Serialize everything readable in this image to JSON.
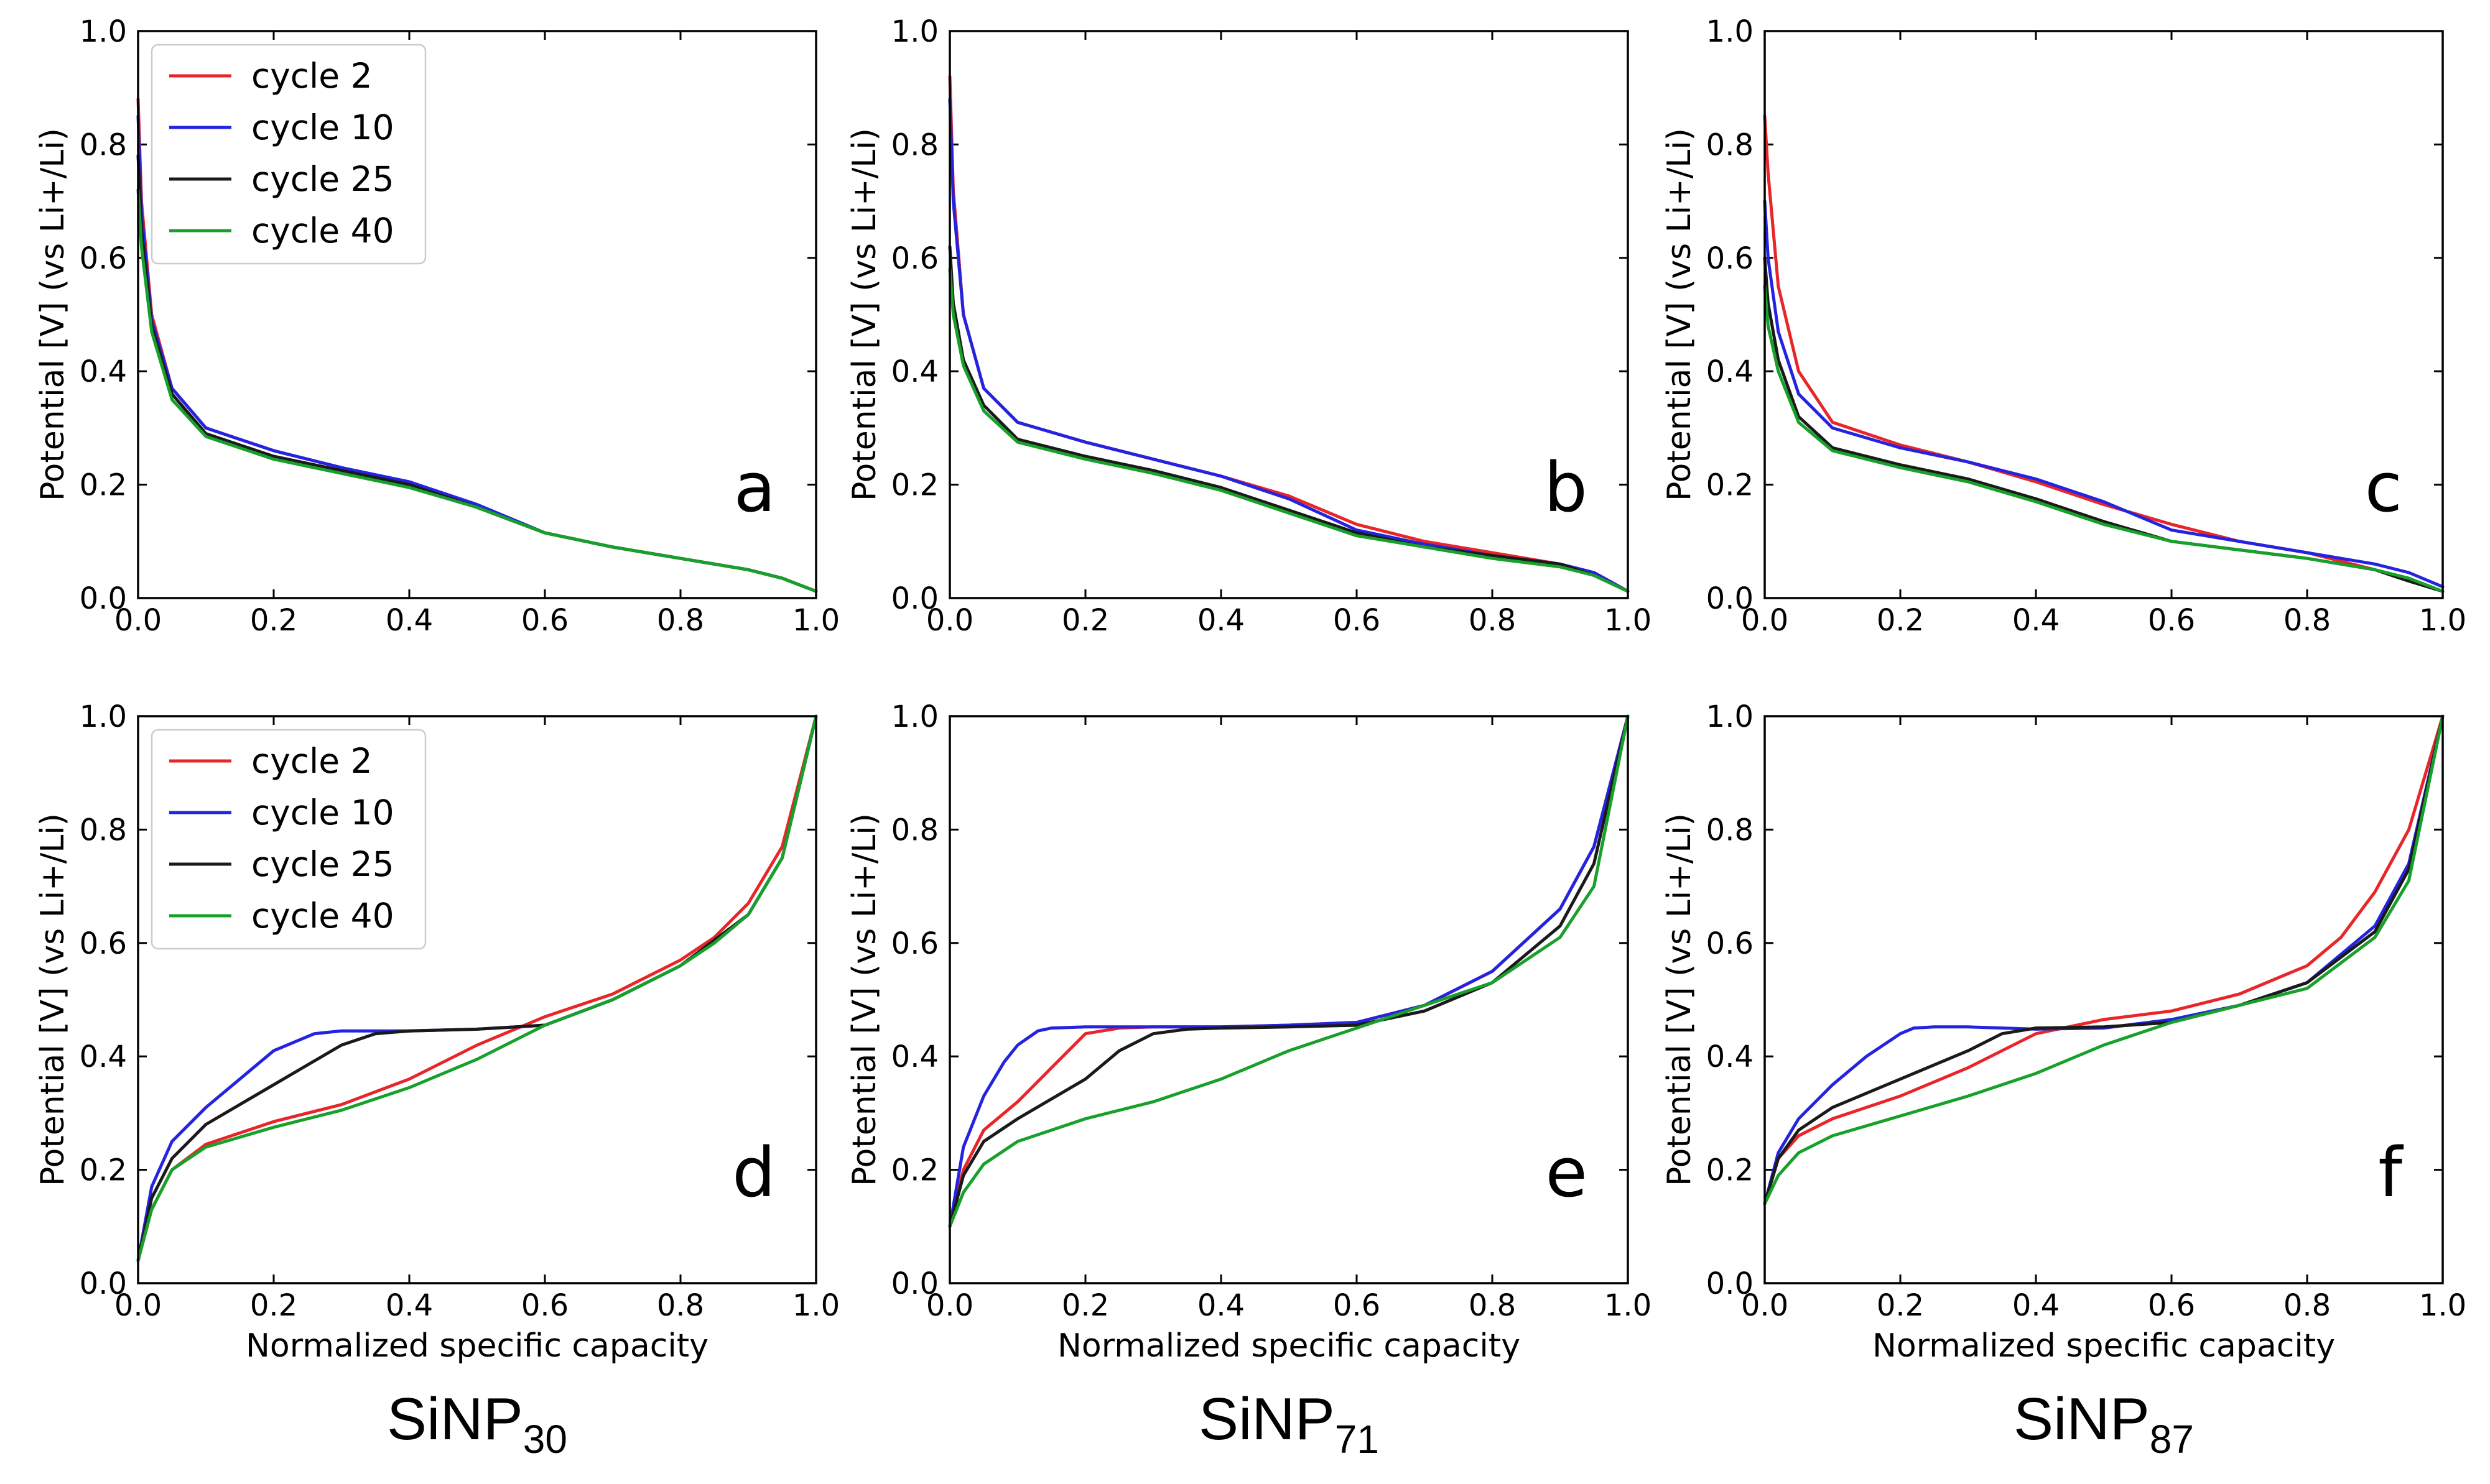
{
  "figure": {
    "xlabel": "Normalized specific capacity",
    "ylabel": "Potential [V] (vs Li+/Li)",
    "tick_labels": [
      "0.0",
      "0.2",
      "0.4",
      "0.6",
      "0.8",
      "1.0"
    ],
    "columns": [
      {
        "base": "SiNP",
        "sub": "30"
      },
      {
        "base": "SiNP",
        "sub": "71"
      },
      {
        "base": "SiNP",
        "sub": "87"
      }
    ],
    "colors": {
      "cycle 2": "#e8262a",
      "cycle 10": "#2424e0",
      "cycle 25": "#1a1a1a",
      "cycle 40": "#17a02a"
    }
  },
  "chart_data": [
    {
      "panel": "a",
      "type": "line",
      "row": "top",
      "column": "SiNP30",
      "legend": true,
      "xlabel": "",
      "ylabel": "Potential [V] (vs Li+/Li)",
      "xlim": [
        0,
        1
      ],
      "ylim": [
        0,
        1
      ],
      "series": [
        {
          "name": "cycle 2",
          "x": [
            0,
            0.005,
            0.02,
            0.05,
            0.1,
            0.2,
            0.3,
            0.4,
            0.5,
            0.6,
            0.7,
            0.8,
            0.9,
            0.95,
            1.0
          ],
          "y": [
            0.88,
            0.7,
            0.5,
            0.37,
            0.3,
            0.26,
            0.23,
            0.2,
            0.16,
            0.115,
            0.09,
            0.07,
            0.05,
            0.035,
            0.012
          ]
        },
        {
          "name": "cycle 10",
          "x": [
            0,
            0.005,
            0.02,
            0.05,
            0.1,
            0.2,
            0.3,
            0.4,
            0.5,
            0.6,
            0.7,
            0.8,
            0.9,
            0.95,
            1.0
          ],
          "y": [
            0.85,
            0.68,
            0.49,
            0.37,
            0.3,
            0.26,
            0.23,
            0.205,
            0.165,
            0.115,
            0.09,
            0.07,
            0.05,
            0.035,
            0.012
          ]
        },
        {
          "name": "cycle 25",
          "x": [
            0,
            0.005,
            0.02,
            0.05,
            0.1,
            0.2,
            0.3,
            0.4,
            0.5,
            0.6,
            0.7,
            0.8,
            0.9,
            0.95,
            1.0
          ],
          "y": [
            0.78,
            0.65,
            0.48,
            0.36,
            0.29,
            0.25,
            0.225,
            0.2,
            0.16,
            0.115,
            0.09,
            0.07,
            0.05,
            0.035,
            0.012
          ]
        },
        {
          "name": "cycle 40",
          "x": [
            0,
            0.005,
            0.02,
            0.05,
            0.1,
            0.2,
            0.3,
            0.4,
            0.5,
            0.6,
            0.7,
            0.8,
            0.9,
            0.95,
            1.0
          ],
          "y": [
            0.72,
            0.62,
            0.47,
            0.35,
            0.285,
            0.245,
            0.22,
            0.195,
            0.16,
            0.115,
            0.09,
            0.07,
            0.05,
            0.035,
            0.012
          ]
        }
      ]
    },
    {
      "panel": "b",
      "type": "line",
      "row": "top",
      "column": "SiNP71",
      "legend": false,
      "xlabel": "",
      "ylabel": "Potential [V] (vs Li+/Li)",
      "xlim": [
        0,
        1
      ],
      "ylim": [
        0,
        1
      ],
      "series": [
        {
          "name": "cycle 2",
          "x": [
            0,
            0.005,
            0.02,
            0.05,
            0.1,
            0.2,
            0.3,
            0.4,
            0.5,
            0.6,
            0.7,
            0.8,
            0.9,
            0.95,
            1.0
          ],
          "y": [
            0.92,
            0.72,
            0.5,
            0.37,
            0.31,
            0.275,
            0.245,
            0.215,
            0.18,
            0.13,
            0.1,
            0.08,
            0.06,
            0.045,
            0.012
          ]
        },
        {
          "name": "cycle 10",
          "x": [
            0,
            0.005,
            0.02,
            0.05,
            0.1,
            0.2,
            0.3,
            0.4,
            0.5,
            0.6,
            0.7,
            0.8,
            0.9,
            0.95,
            1.0
          ],
          "y": [
            0.88,
            0.7,
            0.5,
            0.37,
            0.31,
            0.275,
            0.245,
            0.215,
            0.175,
            0.12,
            0.095,
            0.075,
            0.06,
            0.045,
            0.012
          ]
        },
        {
          "name": "cycle 25",
          "x": [
            0,
            0.005,
            0.02,
            0.05,
            0.1,
            0.2,
            0.3,
            0.4,
            0.5,
            0.6,
            0.7,
            0.8,
            0.9,
            0.95,
            1.0
          ],
          "y": [
            0.62,
            0.52,
            0.42,
            0.34,
            0.28,
            0.25,
            0.225,
            0.195,
            0.155,
            0.115,
            0.09,
            0.075,
            0.06,
            0.04,
            0.012
          ]
        },
        {
          "name": "cycle 40",
          "x": [
            0,
            0.005,
            0.02,
            0.05,
            0.1,
            0.2,
            0.3,
            0.4,
            0.5,
            0.6,
            0.7,
            0.8,
            0.9,
            0.95,
            1.0
          ],
          "y": [
            0.58,
            0.5,
            0.41,
            0.33,
            0.275,
            0.245,
            0.22,
            0.19,
            0.15,
            0.11,
            0.09,
            0.07,
            0.055,
            0.04,
            0.012
          ]
        }
      ]
    },
    {
      "panel": "c",
      "type": "line",
      "row": "top",
      "column": "SiNP87",
      "legend": false,
      "xlabel": "",
      "ylabel": "Potential [V] (vs Li+/Li)",
      "xlim": [
        0,
        1
      ],
      "ylim": [
        0,
        1
      ],
      "series": [
        {
          "name": "cycle 2",
          "x": [
            0,
            0.005,
            0.02,
            0.05,
            0.1,
            0.2,
            0.3,
            0.4,
            0.5,
            0.6,
            0.7,
            0.8,
            0.9,
            0.95,
            1.0
          ],
          "y": [
            0.85,
            0.75,
            0.55,
            0.4,
            0.31,
            0.27,
            0.24,
            0.205,
            0.165,
            0.13,
            0.1,
            0.08,
            0.05,
            0.03,
            0.012
          ]
        },
        {
          "name": "cycle 10",
          "x": [
            0,
            0.005,
            0.02,
            0.05,
            0.1,
            0.2,
            0.3,
            0.4,
            0.5,
            0.6,
            0.7,
            0.8,
            0.9,
            0.95,
            1.0
          ],
          "y": [
            0.7,
            0.6,
            0.47,
            0.36,
            0.3,
            0.265,
            0.24,
            0.21,
            0.17,
            0.12,
            0.1,
            0.08,
            0.06,
            0.045,
            0.02
          ]
        },
        {
          "name": "cycle 25",
          "x": [
            0,
            0.005,
            0.02,
            0.05,
            0.1,
            0.2,
            0.3,
            0.4,
            0.5,
            0.6,
            0.7,
            0.8,
            0.9,
            0.95,
            1.0
          ],
          "y": [
            0.6,
            0.52,
            0.42,
            0.32,
            0.265,
            0.235,
            0.21,
            0.175,
            0.135,
            0.1,
            0.085,
            0.07,
            0.05,
            0.03,
            0.012
          ]
        },
        {
          "name": "cycle 40",
          "x": [
            0,
            0.005,
            0.02,
            0.05,
            0.1,
            0.2,
            0.3,
            0.4,
            0.5,
            0.6,
            0.7,
            0.8,
            0.9,
            0.95,
            1.0
          ],
          "y": [
            0.55,
            0.48,
            0.4,
            0.31,
            0.26,
            0.23,
            0.205,
            0.17,
            0.13,
            0.1,
            0.085,
            0.07,
            0.05,
            0.035,
            0.012
          ]
        }
      ]
    },
    {
      "panel": "d",
      "type": "line",
      "row": "bottom",
      "column": "SiNP30",
      "legend": true,
      "xlabel": "Normalized specific capacity",
      "ylabel": "Potential [V] (vs Li+/Li)",
      "xlim": [
        0,
        1
      ],
      "ylim": [
        0,
        1
      ],
      "series": [
        {
          "name": "cycle 2",
          "x": [
            0,
            0.02,
            0.05,
            0.1,
            0.2,
            0.3,
            0.4,
            0.5,
            0.6,
            0.7,
            0.8,
            0.85,
            0.9,
            0.95,
            1.0
          ],
          "y": [
            0.04,
            0.13,
            0.2,
            0.245,
            0.285,
            0.315,
            0.36,
            0.42,
            0.47,
            0.51,
            0.57,
            0.61,
            0.67,
            0.77,
            1.0
          ]
        },
        {
          "name": "cycle 10",
          "x": [
            0,
            0.02,
            0.05,
            0.1,
            0.15,
            0.2,
            0.26,
            0.3,
            0.4,
            0.5,
            0.6,
            0.7,
            0.8,
            0.9,
            0.95,
            1.0
          ],
          "y": [
            0.04,
            0.17,
            0.25,
            0.31,
            0.36,
            0.41,
            0.44,
            0.445,
            0.445,
            0.448,
            0.455,
            0.5,
            0.56,
            0.65,
            0.75,
            1.0
          ]
        },
        {
          "name": "cycle 25",
          "x": [
            0,
            0.02,
            0.05,
            0.1,
            0.2,
            0.3,
            0.35,
            0.4,
            0.5,
            0.6,
            0.7,
            0.8,
            0.9,
            0.95,
            1.0
          ],
          "y": [
            0.04,
            0.15,
            0.22,
            0.28,
            0.35,
            0.42,
            0.44,
            0.445,
            0.448,
            0.455,
            0.5,
            0.56,
            0.65,
            0.75,
            1.0
          ]
        },
        {
          "name": "cycle 40",
          "x": [
            0,
            0.02,
            0.05,
            0.1,
            0.2,
            0.3,
            0.4,
            0.5,
            0.6,
            0.7,
            0.8,
            0.85,
            0.9,
            0.95,
            1.0
          ],
          "y": [
            0.04,
            0.13,
            0.2,
            0.24,
            0.275,
            0.305,
            0.345,
            0.395,
            0.455,
            0.5,
            0.56,
            0.6,
            0.65,
            0.75,
            1.0
          ]
        }
      ]
    },
    {
      "panel": "e",
      "type": "line",
      "row": "bottom",
      "column": "SiNP71",
      "legend": false,
      "xlabel": "Normalized specific capacity",
      "ylabel": "Potential [V] (vs Li+/Li)",
      "xlim": [
        0,
        1
      ],
      "ylim": [
        0,
        1
      ],
      "series": [
        {
          "name": "cycle 2",
          "x": [
            0,
            0.02,
            0.05,
            0.1,
            0.15,
            0.2,
            0.25,
            0.3,
            0.4,
            0.5,
            0.6,
            0.7,
            0.8,
            0.9,
            0.95,
            1.0
          ],
          "y": [
            0.1,
            0.2,
            0.27,
            0.32,
            0.38,
            0.44,
            0.45,
            0.452,
            0.452,
            0.455,
            0.46,
            0.49,
            0.55,
            0.66,
            0.77,
            1.0
          ]
        },
        {
          "name": "cycle 10",
          "x": [
            0,
            0.02,
            0.05,
            0.08,
            0.1,
            0.13,
            0.15,
            0.2,
            0.3,
            0.4,
            0.5,
            0.6,
            0.7,
            0.8,
            0.9,
            0.95,
            1.0
          ],
          "y": [
            0.1,
            0.24,
            0.33,
            0.39,
            0.42,
            0.445,
            0.45,
            0.452,
            0.452,
            0.452,
            0.455,
            0.46,
            0.49,
            0.55,
            0.66,
            0.77,
            1.0
          ]
        },
        {
          "name": "cycle 25",
          "x": [
            0,
            0.02,
            0.05,
            0.1,
            0.2,
            0.25,
            0.3,
            0.35,
            0.4,
            0.5,
            0.6,
            0.7,
            0.8,
            0.9,
            0.95,
            1.0
          ],
          "y": [
            0.1,
            0.19,
            0.25,
            0.29,
            0.36,
            0.41,
            0.44,
            0.448,
            0.45,
            0.452,
            0.455,
            0.48,
            0.53,
            0.63,
            0.74,
            1.0
          ]
        },
        {
          "name": "cycle 40",
          "x": [
            0,
            0.02,
            0.05,
            0.1,
            0.2,
            0.3,
            0.4,
            0.5,
            0.6,
            0.7,
            0.8,
            0.9,
            0.95,
            1.0
          ],
          "y": [
            0.1,
            0.16,
            0.21,
            0.25,
            0.29,
            0.32,
            0.36,
            0.41,
            0.45,
            0.49,
            0.53,
            0.61,
            0.7,
            1.0
          ]
        }
      ]
    },
    {
      "panel": "f",
      "type": "line",
      "row": "bottom",
      "column": "SiNP87",
      "legend": false,
      "xlabel": "Normalized specific capacity",
      "ylabel": "Potential [V] (vs Li+/Li)",
      "xlim": [
        0,
        1
      ],
      "ylim": [
        0,
        1
      ],
      "series": [
        {
          "name": "cycle 2",
          "x": [
            0,
            0.02,
            0.05,
            0.1,
            0.2,
            0.3,
            0.4,
            0.5,
            0.6,
            0.7,
            0.8,
            0.85,
            0.9,
            0.95,
            1.0
          ],
          "y": [
            0.14,
            0.22,
            0.26,
            0.29,
            0.33,
            0.38,
            0.44,
            0.465,
            0.48,
            0.51,
            0.56,
            0.61,
            0.69,
            0.8,
            1.0
          ]
        },
        {
          "name": "cycle 10",
          "x": [
            0,
            0.02,
            0.05,
            0.1,
            0.15,
            0.2,
            0.22,
            0.25,
            0.3,
            0.4,
            0.5,
            0.6,
            0.7,
            0.8,
            0.9,
            0.95,
            1.0
          ],
          "y": [
            0.14,
            0.23,
            0.29,
            0.35,
            0.4,
            0.44,
            0.45,
            0.452,
            0.452,
            0.448,
            0.45,
            0.465,
            0.49,
            0.53,
            0.63,
            0.74,
            1.0
          ]
        },
        {
          "name": "cycle 25",
          "x": [
            0,
            0.02,
            0.05,
            0.1,
            0.2,
            0.3,
            0.35,
            0.4,
            0.5,
            0.6,
            0.7,
            0.8,
            0.9,
            0.95,
            1.0
          ],
          "y": [
            0.14,
            0.22,
            0.27,
            0.31,
            0.36,
            0.41,
            0.44,
            0.45,
            0.452,
            0.46,
            0.49,
            0.53,
            0.62,
            0.73,
            1.0
          ]
        },
        {
          "name": "cycle 40",
          "x": [
            0,
            0.02,
            0.05,
            0.1,
            0.2,
            0.3,
            0.4,
            0.5,
            0.6,
            0.7,
            0.8,
            0.9,
            0.95,
            1.0
          ],
          "y": [
            0.14,
            0.19,
            0.23,
            0.26,
            0.295,
            0.33,
            0.37,
            0.42,
            0.46,
            0.49,
            0.52,
            0.61,
            0.71,
            1.0
          ]
        }
      ]
    }
  ]
}
